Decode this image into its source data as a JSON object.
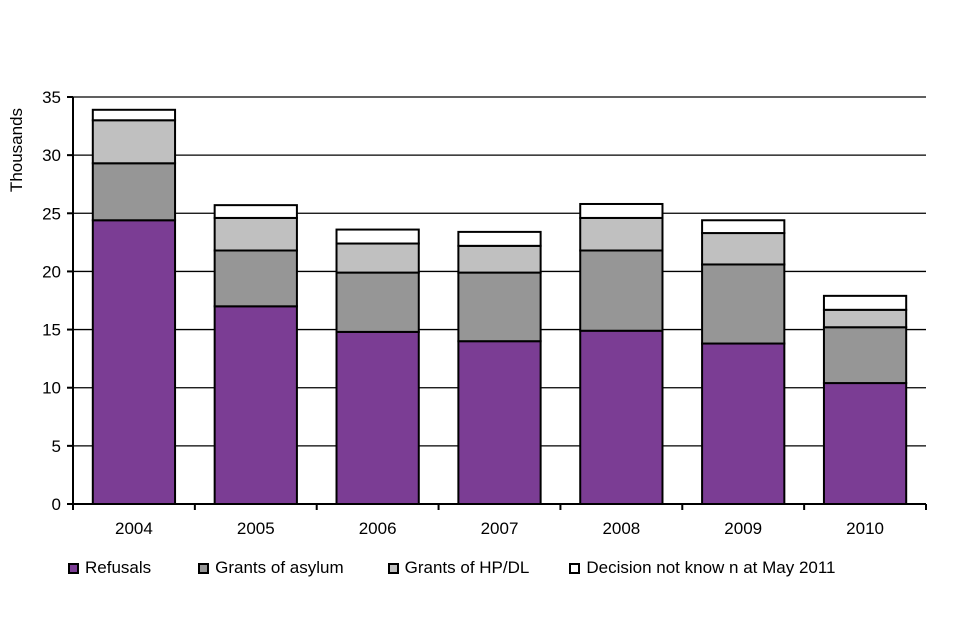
{
  "chart_data": {
    "type": "bar",
    "stacked": true,
    "title": "",
    "xlabel": "",
    "ylabel": "Thousands",
    "ylim": [
      0,
      35
    ],
    "yticks": [
      0,
      5,
      10,
      15,
      20,
      25,
      30,
      35
    ],
    "grid": true,
    "legend_position": "bottom",
    "categories": [
      "2004",
      "2005",
      "2006",
      "2007",
      "2008",
      "2009",
      "2010"
    ],
    "series": [
      {
        "name": "Refusals",
        "color": "#7B3D94",
        "values": [
          24.4,
          17.0,
          14.8,
          14.0,
          14.9,
          13.8,
          10.4
        ]
      },
      {
        "name": "Grants of asylum",
        "color": "#969696",
        "values": [
          4.9,
          4.8,
          5.1,
          5.9,
          6.9,
          6.8,
          4.8
        ]
      },
      {
        "name": "Grants of HP/DL",
        "color": "#C0C0C0",
        "values": [
          3.7,
          2.8,
          2.5,
          2.3,
          2.8,
          2.7,
          1.5
        ]
      },
      {
        "name": "Decision not know n at May 2011",
        "color": "#FFFFFF",
        "values": [
          0.9,
          1.1,
          1.2,
          1.2,
          1.2,
          1.1,
          1.2
        ]
      }
    ]
  }
}
